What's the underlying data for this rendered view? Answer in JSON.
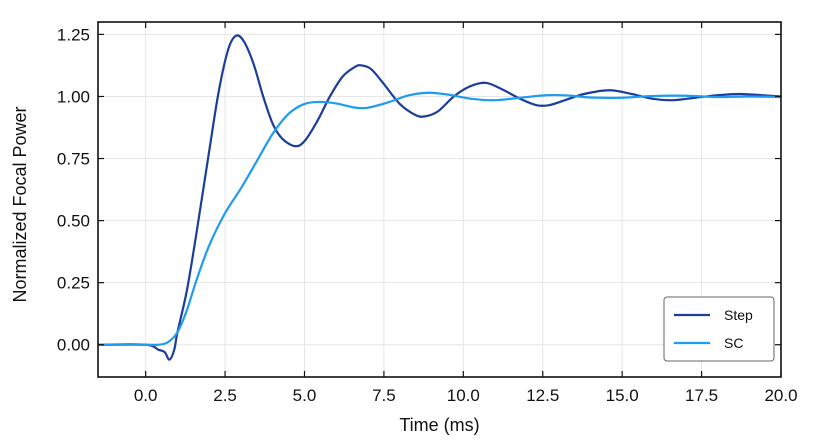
{
  "chart_data": {
    "type": "line",
    "xlabel": "Time (ms)",
    "ylabel": "Normalized Focal Power",
    "xlim": [
      -1.5,
      20
    ],
    "ylim": [
      -0.13,
      1.3
    ],
    "x_ticks": [
      0.0,
      2.5,
      5.0,
      7.5,
      10.0,
      12.5,
      15.0,
      17.5,
      20.0
    ],
    "x_tick_labels": [
      "0.0",
      "2.5",
      "5.0",
      "7.5",
      "10.0",
      "12.5",
      "15.0",
      "17.5",
      "20.0"
    ],
    "y_ticks": [
      0.0,
      0.25,
      0.5,
      0.75,
      1.0,
      1.25
    ],
    "y_tick_labels": [
      "0.00",
      "0.25",
      "0.50",
      "0.75",
      "1.00",
      "1.25"
    ],
    "grid": true,
    "legend_position": "bottom-right",
    "series": [
      {
        "name": "Step",
        "color": "#1a3e99",
        "points": [
          [
            -1.5,
            0.0
          ],
          [
            0.0,
            0.0
          ],
          [
            0.4,
            -0.02
          ],
          [
            0.6,
            -0.03
          ],
          [
            0.75,
            -0.06
          ],
          [
            0.9,
            -0.02
          ],
          [
            1.0,
            0.05
          ],
          [
            1.3,
            0.22
          ],
          [
            1.6,
            0.45
          ],
          [
            2.0,
            0.78
          ],
          [
            2.3,
            1.02
          ],
          [
            2.6,
            1.19
          ],
          [
            2.85,
            1.245
          ],
          [
            3.1,
            1.22
          ],
          [
            3.4,
            1.13
          ],
          [
            3.7,
            1.0
          ],
          [
            4.0,
            0.89
          ],
          [
            4.3,
            0.83
          ],
          [
            4.7,
            0.8
          ],
          [
            5.0,
            0.82
          ],
          [
            5.4,
            0.9
          ],
          [
            5.8,
            1.0
          ],
          [
            6.2,
            1.08
          ],
          [
            6.6,
            1.12
          ],
          [
            6.8,
            1.125
          ],
          [
            7.1,
            1.11
          ],
          [
            7.5,
            1.05
          ],
          [
            8.0,
            0.97
          ],
          [
            8.5,
            0.925
          ],
          [
            8.8,
            0.92
          ],
          [
            9.2,
            0.94
          ],
          [
            9.7,
            1.0
          ],
          [
            10.2,
            1.04
          ],
          [
            10.7,
            1.055
          ],
          [
            11.2,
            1.03
          ],
          [
            11.8,
            0.99
          ],
          [
            12.3,
            0.965
          ],
          [
            12.7,
            0.965
          ],
          [
            13.2,
            0.985
          ],
          [
            13.8,
            1.01
          ],
          [
            14.6,
            1.025
          ],
          [
            15.3,
            1.01
          ],
          [
            16.0,
            0.99
          ],
          [
            16.6,
            0.985
          ],
          [
            17.3,
            0.995
          ],
          [
            18.0,
            1.005
          ],
          [
            18.7,
            1.01
          ],
          [
            19.4,
            1.005
          ],
          [
            20.0,
            1.0
          ]
        ]
      },
      {
        "name": "SC",
        "color": "#1e9cf0",
        "points": [
          [
            -1.5,
            0.0
          ],
          [
            0.0,
            0.0
          ],
          [
            0.4,
            0.0
          ],
          [
            0.7,
            0.01
          ],
          [
            1.0,
            0.05
          ],
          [
            1.3,
            0.14
          ],
          [
            1.6,
            0.26
          ],
          [
            2.0,
            0.4
          ],
          [
            2.5,
            0.53
          ],
          [
            3.0,
            0.63
          ],
          [
            3.5,
            0.74
          ],
          [
            4.0,
            0.85
          ],
          [
            4.5,
            0.93
          ],
          [
            5.0,
            0.97
          ],
          [
            5.5,
            0.978
          ],
          [
            6.0,
            0.972
          ],
          [
            6.6,
            0.955
          ],
          [
            7.0,
            0.955
          ],
          [
            7.6,
            0.975
          ],
          [
            8.3,
            1.005
          ],
          [
            8.9,
            1.015
          ],
          [
            9.5,
            1.008
          ],
          [
            10.3,
            0.99
          ],
          [
            11.0,
            0.985
          ],
          [
            11.8,
            0.995
          ],
          [
            12.6,
            1.005
          ],
          [
            13.3,
            1.004
          ],
          [
            14.0,
            0.996
          ],
          [
            15.0,
            0.995
          ],
          [
            16.0,
            1.002
          ],
          [
            17.0,
            1.003
          ],
          [
            18.0,
            0.998
          ],
          [
            19.0,
            1.0
          ],
          [
            20.0,
            0.998
          ]
        ]
      }
    ]
  }
}
